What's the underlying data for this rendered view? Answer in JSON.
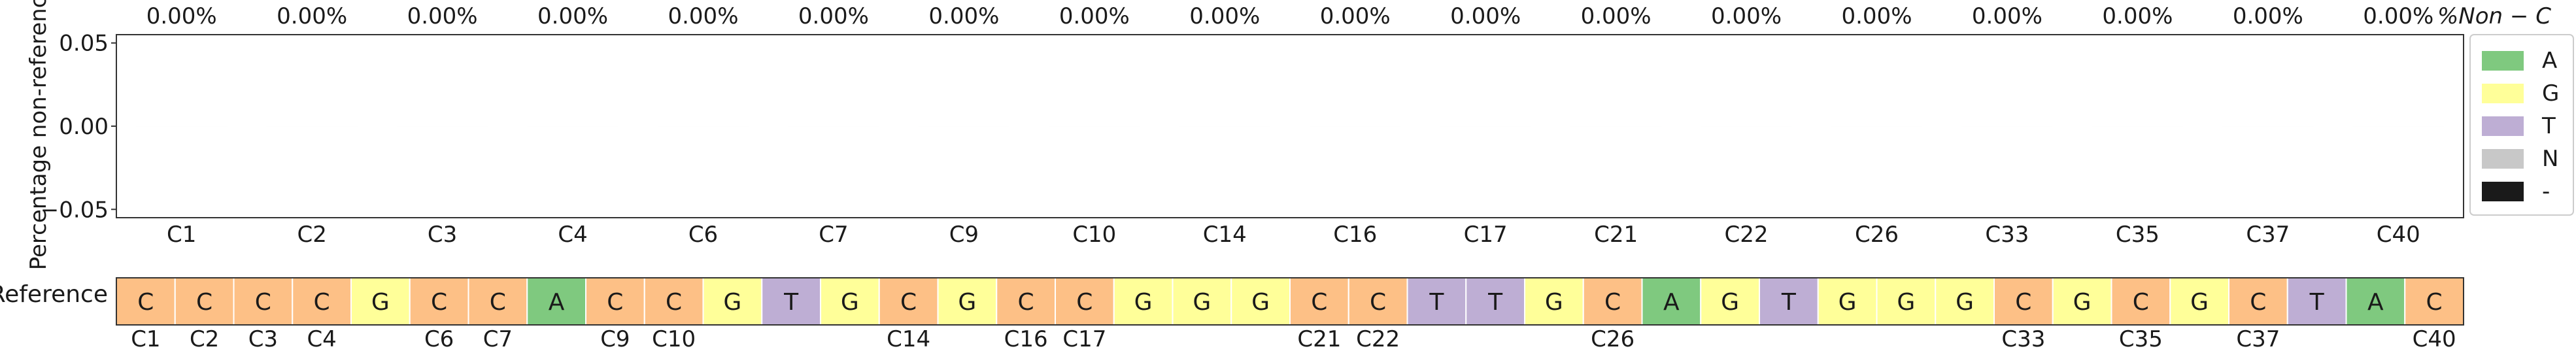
{
  "chart_data": {
    "type": "bar",
    "ylabel": "Percentage non-reference",
    "ylim": [
      -0.055,
      0.055
    ],
    "yticks": [
      "0.05",
      "0.00",
      "−0.05"
    ],
    "grid": false,
    "categories": [
      "C1",
      "C2",
      "C3",
      "C4",
      "C6",
      "C7",
      "C9",
      "C10",
      "C14",
      "C16",
      "C17",
      "C21",
      "C22",
      "C26",
      "C33",
      "C35",
      "C37",
      "C40"
    ],
    "values": [
      0,
      0,
      0,
      0,
      0,
      0,
      0,
      0,
      0,
      0,
      0,
      0,
      0,
      0,
      0,
      0,
      0,
      0
    ],
    "top_labels": [
      "0.00%",
      "0.00%",
      "0.00%",
      "0.00%",
      "0.00%",
      "0.00%",
      "0.00%",
      "0.00%",
      "0.00%",
      "0.00%",
      "0.00%",
      "0.00%",
      "0.00%",
      "0.00%",
      "0.00%",
      "0.00%",
      "0.00%",
      "0.00%"
    ],
    "top_title": "%Non − C",
    "legend": {
      "placement": "right",
      "entries": [
        {
          "label": "A",
          "color": "#7fc97f"
        },
        {
          "label": "G",
          "color": "#ffff99"
        },
        {
          "label": "T",
          "color": "#beaed4"
        },
        {
          "label": "N",
          "color": "#c8c8c8"
        },
        {
          "label": "-",
          "color": "#1a1a1a"
        }
      ]
    },
    "reference": {
      "label": "Reference",
      "bases": [
        "C",
        "C",
        "C",
        "C",
        "G",
        "C",
        "C",
        "A",
        "C",
        "C",
        "G",
        "T",
        "G",
        "C",
        "G",
        "C",
        "C",
        "G",
        "G",
        "G",
        "C",
        "C",
        "T",
        "T",
        "G",
        "C",
        "A",
        "G",
        "T",
        "G",
        "G",
        "G",
        "C",
        "G",
        "C",
        "G",
        "C",
        "T",
        "A",
        "C"
      ],
      "position_labels": [
        {
          "index": 0,
          "label": "C1"
        },
        {
          "index": 1,
          "label": "C2"
        },
        {
          "index": 2,
          "label": "C3"
        },
        {
          "index": 3,
          "label": "C4"
        },
        {
          "index": 5,
          "label": "C6"
        },
        {
          "index": 6,
          "label": "C7"
        },
        {
          "index": 8,
          "label": "C9"
        },
        {
          "index": 9,
          "label": "C10"
        },
        {
          "index": 13,
          "label": "C14"
        },
        {
          "index": 15,
          "label": "C16"
        },
        {
          "index": 16,
          "label": "C17"
        },
        {
          "index": 20,
          "label": "C21"
        },
        {
          "index": 21,
          "label": "C22"
        },
        {
          "index": 25,
          "label": "C26"
        },
        {
          "index": 32,
          "label": "C33"
        },
        {
          "index": 34,
          "label": "C35"
        },
        {
          "index": 36,
          "label": "C37"
        },
        {
          "index": 39,
          "label": "C40"
        }
      ]
    },
    "base_colors": {
      "A": "#7fc97f",
      "C": "#fdc086",
      "G": "#ffff99",
      "T": "#beaed4",
      "N": "#c8c8c8",
      "-": "#1a1a1a"
    }
  }
}
